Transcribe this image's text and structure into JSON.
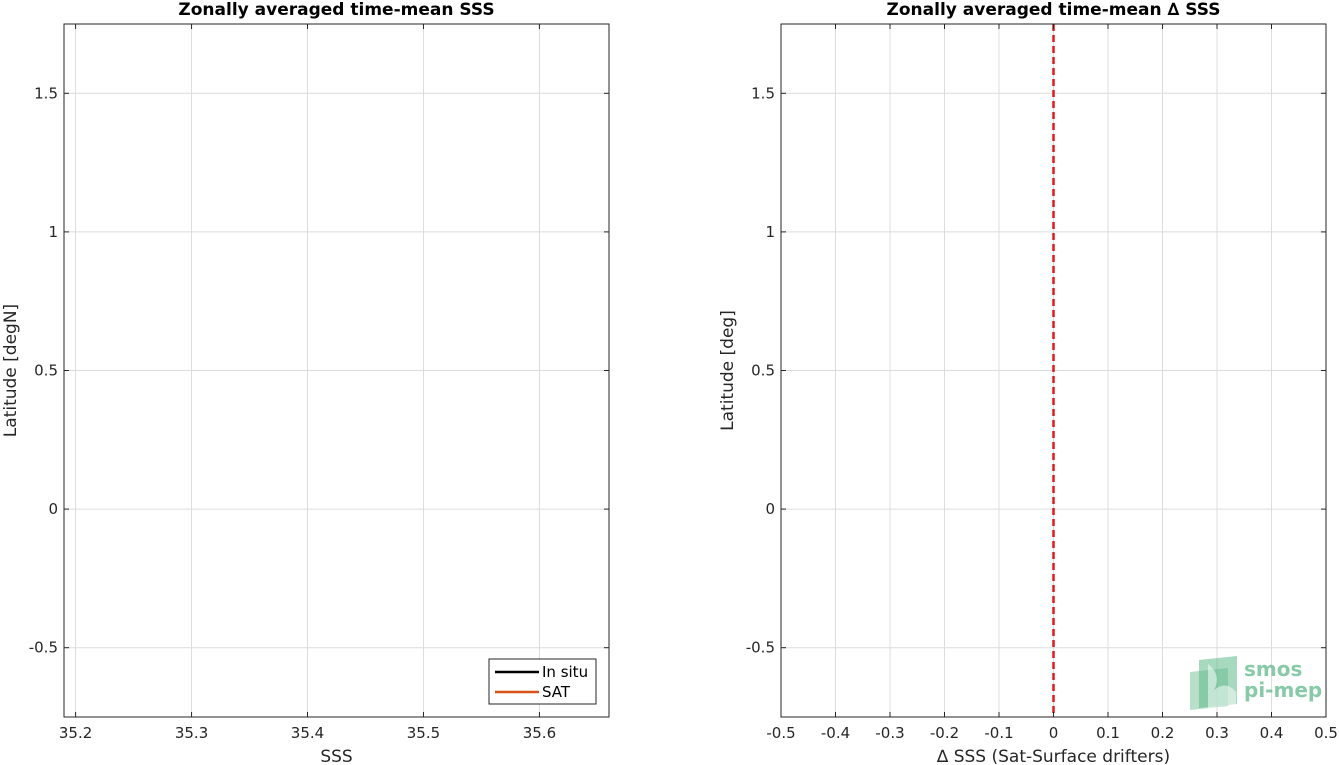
{
  "chart_data": [
    {
      "type": "line",
      "title": "Zonally averaged time-mean SSS",
      "xlabel": "SSS",
      "ylabel": "Latitude [degN]",
      "xlim": [
        35.19,
        35.66
      ],
      "ylim": [
        -0.75,
        1.75
      ],
      "xticks": [
        35.2,
        35.3,
        35.4,
        35.5,
        35.6
      ],
      "xtick_labels": [
        "35.2",
        "35.3",
        "35.4",
        "35.5",
        "35.6"
      ],
      "yticks": [
        -0.5,
        0,
        0.5,
        1,
        1.5
      ],
      "ytick_labels": [
        "-0.5",
        "0",
        "0.5",
        "1",
        "1.5"
      ],
      "grid": true,
      "legend_position": "bottom-right",
      "series": [
        {
          "name": "In situ",
          "color": "#000000",
          "points": []
        },
        {
          "name": "SAT",
          "color": "#d95319",
          "points": []
        }
      ]
    },
    {
      "type": "line",
      "title": "Zonally averaged time-mean ∆ SSS",
      "xlabel": "∆ SSS (Sat-Surface drifters)",
      "ylabel": "Latitude [deg]",
      "xlim": [
        -0.5,
        0.5
      ],
      "ylim": [
        -0.75,
        1.75
      ],
      "xticks": [
        -0.5,
        -0.4,
        -0.3,
        -0.2,
        -0.1,
        0,
        0.1,
        0.2,
        0.3,
        0.4,
        0.5
      ],
      "xtick_labels": [
        "-0.5",
        "-0.4",
        "-0.3",
        "-0.2",
        "-0.1",
        "0",
        "0.1",
        "0.2",
        "0.3",
        "0.4",
        "0.5"
      ],
      "yticks": [
        -0.5,
        0,
        0.5,
        1,
        1.5
      ],
      "ytick_labels": [
        "-0.5",
        "0",
        "0.5",
        "1",
        "1.5"
      ],
      "grid": true,
      "reference_line": {
        "x": 0,
        "color": "#e31a1c",
        "style": "dashed"
      },
      "series": []
    }
  ],
  "logo": {
    "line1": "smos",
    "line2": "pi-mep",
    "color": "#5fb98a"
  }
}
